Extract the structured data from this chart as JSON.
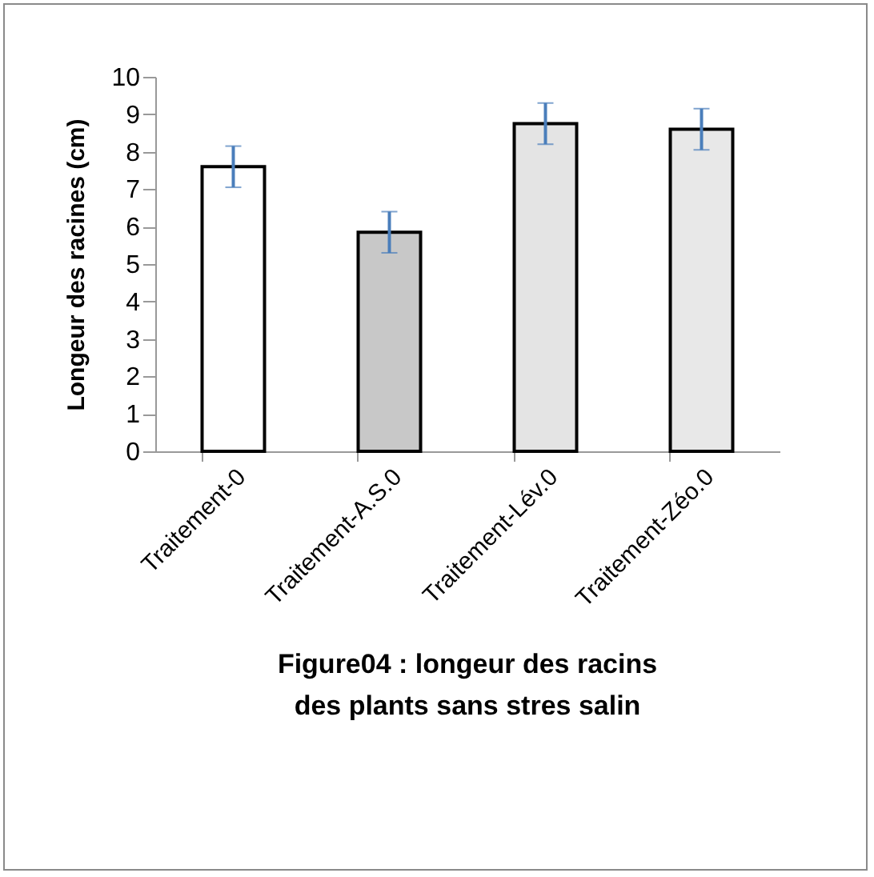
{
  "chart_data": {
    "type": "bar",
    "title": "Figure04 : longeur des racins des plants sans stres salin",
    "ylabel": "Longeur des racines (cm)",
    "categories": [
      "Traitement-0",
      "Traitement-A.S.0",
      "Traitement-Lév.0",
      "Traitement-Zéo.0"
    ],
    "values": [
      7.6,
      5.85,
      8.75,
      8.6
    ],
    "errors": [
      0.55,
      0.55,
      0.55,
      0.55
    ],
    "colors": [
      "#ffffff",
      "#c8c8c8",
      "#e4e4e4",
      "#e8e8e8"
    ],
    "ylim": [
      0,
      10
    ],
    "yticks": [
      0,
      1,
      2,
      3,
      4,
      5,
      6,
      7,
      8,
      9,
      10
    ],
    "grid": false
  }
}
